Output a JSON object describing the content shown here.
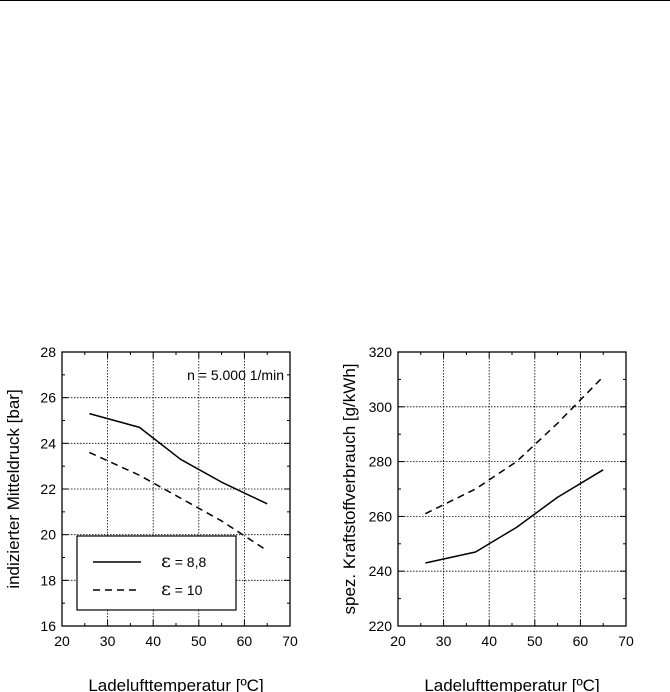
{
  "chart_data": [
    {
      "type": "line",
      "title": "",
      "xlabel": "Ladelufttemperatur [ºC]",
      "ylabel": "indizierter Mitteldruck [bar]",
      "xlim": [
        20,
        70
      ],
      "ylim": [
        16,
        28
      ],
      "xticks": [
        20,
        30,
        40,
        50,
        60,
        70
      ],
      "yticks": [
        16,
        18,
        20,
        22,
        24,
        26,
        28
      ],
      "grid": true,
      "annotation": "n = 5.000 1/min",
      "legend": {
        "position": "bottom-left",
        "entries": [
          {
            "symbol": "ε",
            "label": " = 8,8",
            "style": "solid"
          },
          {
            "symbol": "ε",
            "label": " = 10",
            "style": "dashed"
          }
        ]
      },
      "series": [
        {
          "name": "ε = 8,8",
          "style": "solid",
          "x": [
            26,
            37,
            46,
            55,
            65
          ],
          "y": [
            25.3,
            24.7,
            23.3,
            22.3,
            21.35
          ]
        },
        {
          "name": "ε = 10",
          "style": "dashed",
          "x": [
            26,
            37,
            46,
            55,
            65
          ],
          "y": [
            23.6,
            22.6,
            21.6,
            20.6,
            19.3
          ]
        }
      ]
    },
    {
      "type": "line",
      "title": "",
      "xlabel": "Ladelufttemperatur [ºC]",
      "ylabel": "spez. Kraftstoffverbrauch [g/kWh]",
      "xlim": [
        20,
        70
      ],
      "ylim": [
        220,
        320
      ],
      "xticks": [
        20,
        30,
        40,
        50,
        60,
        70
      ],
      "yticks": [
        220,
        240,
        260,
        280,
        300,
        320
      ],
      "grid": true,
      "series": [
        {
          "name": "ε = 8,8",
          "style": "solid",
          "x": [
            26,
            37,
            46,
            55,
            65
          ],
          "y": [
            243,
            247,
            256,
            267,
            277
          ]
        },
        {
          "name": "ε = 10",
          "style": "dashed",
          "x": [
            26,
            37,
            46,
            55,
            65
          ],
          "y": [
            261,
            270,
            280,
            294,
            311
          ]
        }
      ]
    }
  ]
}
